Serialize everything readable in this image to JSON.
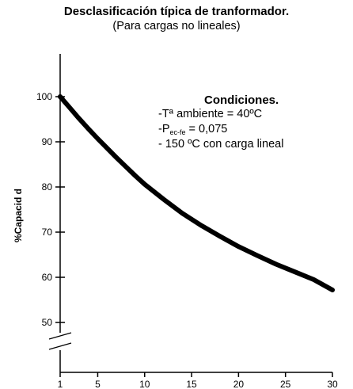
{
  "chart_data": {
    "type": "line",
    "title": "Desclasificación típica de tranformador.",
    "subtitle": "(Para cargas no lineales)",
    "ylabel": "%Capacid  d",
    "xlabel": "",
    "xlim": [
      1,
      30
    ],
    "ylim": [
      50,
      100
    ],
    "y_axis_break": true,
    "grid": false,
    "x_ticks": [
      "1",
      "5",
      "10",
      "15",
      "20",
      "25",
      "30"
    ],
    "y_ticks": [
      "100",
      "90",
      "80",
      "70",
      "60",
      "50"
    ],
    "series": [
      {
        "x": [
          1,
          2,
          3,
          4,
          5,
          6,
          7,
          8,
          9,
          10,
          12,
          14,
          16,
          18,
          20,
          22,
          24,
          26,
          28,
          30
        ],
        "y": [
          100,
          97.6,
          95.2,
          92.9,
          90.7,
          88.6,
          86.5,
          84.5,
          82.5,
          80.6,
          77.3,
          74.2,
          71.5,
          69.1,
          66.8,
          64.8,
          62.9,
          61.2,
          59.5,
          57.2
        ]
      }
    ],
    "annotations": {
      "heading": "Condiciones.",
      "line1": "-Tª ambiente = 40ºC",
      "line2_prefix": "-P",
      "line2_sub": "ec-fe",
      "line2_suffix": " = 0,075",
      "line3": "- 150 ºC con carga lineal"
    },
    "colors": {
      "curve": "#000000",
      "axes": "#000000"
    }
  }
}
